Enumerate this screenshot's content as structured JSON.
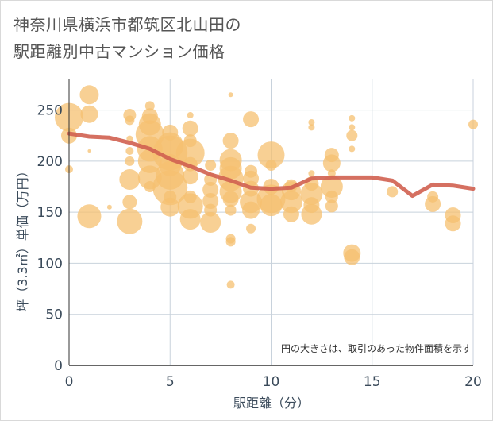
{
  "title_line1": "神奈川県横浜市都筑区北山田の",
  "title_line2": "駅距離別中古マンション価格",
  "chart_data": {
    "type": "scatter",
    "xlabel": "駅距離（分）",
    "ylabel": "坪（3.3㎡）単価（万円）",
    "note": "円の大きさは、取引のあった物件面積を示す",
    "xlim": [
      0,
      20
    ],
    "ylim": [
      0,
      280
    ],
    "xticks": [
      "0",
      "5",
      "10",
      "15",
      "20"
    ],
    "yticks": [
      "0",
      "50",
      "100",
      "150",
      "200",
      "250"
    ],
    "grid": true,
    "colors": {
      "bubble": "#f5c070",
      "line": "#d06050",
      "grid": "#c8d2dc"
    },
    "trend_line": {
      "x": [
        0,
        1,
        2,
        3,
        4,
        5,
        6,
        7,
        8,
        9,
        10,
        11,
        12,
        13,
        14,
        15,
        16,
        17,
        18,
        19,
        20
      ],
      "y": [
        227,
        224,
        223,
        218,
        212,
        202,
        195,
        187,
        181,
        174,
        173,
        174,
        183,
        184,
        184,
        184,
        181,
        166,
        177,
        176,
        173
      ]
    },
    "bubbles": [
      {
        "x": 0,
        "y": 243,
        "r": 18
      },
      {
        "x": 0,
        "y": 225,
        "r": 10
      },
      {
        "x": 0,
        "y": 192,
        "r": 5
      },
      {
        "x": 1,
        "y": 265,
        "r": 12
      },
      {
        "x": 1,
        "y": 246,
        "r": 11
      },
      {
        "x": 1,
        "y": 146,
        "r": 15
      },
      {
        "x": 1,
        "y": 210,
        "r": 2
      },
      {
        "x": 2,
        "y": 155,
        "r": 3
      },
      {
        "x": 3,
        "y": 245,
        "r": 8
      },
      {
        "x": 3,
        "y": 240,
        "r": 6
      },
      {
        "x": 3,
        "y": 222,
        "r": 4
      },
      {
        "x": 3,
        "y": 210,
        "r": 5
      },
      {
        "x": 3,
        "y": 200,
        "r": 6
      },
      {
        "x": 3,
        "y": 182,
        "r": 13
      },
      {
        "x": 3,
        "y": 160,
        "r": 9
      },
      {
        "x": 3,
        "y": 141,
        "r": 16
      },
      {
        "x": 4,
        "y": 254,
        "r": 6
      },
      {
        "x": 4,
        "y": 244,
        "r": 10
      },
      {
        "x": 4,
        "y": 236,
        "r": 14
      },
      {
        "x": 4,
        "y": 226,
        "r": 18
      },
      {
        "x": 4,
        "y": 212,
        "r": 16
      },
      {
        "x": 4,
        "y": 200,
        "r": 15
      },
      {
        "x": 4,
        "y": 184,
        "r": 15
      },
      {
        "x": 4,
        "y": 175,
        "r": 7
      },
      {
        "x": 5,
        "y": 228,
        "r": 10
      },
      {
        "x": 5,
        "y": 215,
        "r": 17
      },
      {
        "x": 5,
        "y": 208,
        "r": 22
      },
      {
        "x": 5,
        "y": 196,
        "r": 14
      },
      {
        "x": 5,
        "y": 186,
        "r": 18
      },
      {
        "x": 5,
        "y": 174,
        "r": 22
      },
      {
        "x": 5,
        "y": 165,
        "r": 8
      },
      {
        "x": 5,
        "y": 155,
        "r": 12
      },
      {
        "x": 6,
        "y": 245,
        "r": 4
      },
      {
        "x": 6,
        "y": 232,
        "r": 10
      },
      {
        "x": 6,
        "y": 220,
        "r": 8
      },
      {
        "x": 6,
        "y": 208,
        "r": 18
      },
      {
        "x": 6,
        "y": 197,
        "r": 9
      },
      {
        "x": 6,
        "y": 185,
        "r": 10
      },
      {
        "x": 6,
        "y": 165,
        "r": 8
      },
      {
        "x": 6,
        "y": 156,
        "r": 16
      },
      {
        "x": 6,
        "y": 143,
        "r": 13
      },
      {
        "x": 7,
        "y": 196,
        "r": 7
      },
      {
        "x": 7,
        "y": 182,
        "r": 8
      },
      {
        "x": 7,
        "y": 172,
        "r": 10
      },
      {
        "x": 7,
        "y": 161,
        "r": 10
      },
      {
        "x": 7,
        "y": 152,
        "r": 8
      },
      {
        "x": 7,
        "y": 140,
        "r": 13
      },
      {
        "x": 8,
        "y": 265,
        "r": 3
      },
      {
        "x": 8,
        "y": 220,
        "r": 10
      },
      {
        "x": 8,
        "y": 201,
        "r": 14
      },
      {
        "x": 8,
        "y": 193,
        "r": 14
      },
      {
        "x": 8,
        "y": 183,
        "r": 16
      },
      {
        "x": 8,
        "y": 170,
        "r": 14
      },
      {
        "x": 8,
        "y": 163,
        "r": 10
      },
      {
        "x": 8,
        "y": 152,
        "r": 7
      },
      {
        "x": 8,
        "y": 124,
        "r": 6
      },
      {
        "x": 8,
        "y": 121,
        "r": 6
      },
      {
        "x": 8,
        "y": 79,
        "r": 5
      },
      {
        "x": 9,
        "y": 241,
        "r": 10
      },
      {
        "x": 9,
        "y": 190,
        "r": 8
      },
      {
        "x": 9,
        "y": 183,
        "r": 10
      },
      {
        "x": 9,
        "y": 173,
        "r": 10
      },
      {
        "x": 9,
        "y": 160,
        "r": 14
      },
      {
        "x": 9,
        "y": 152,
        "r": 11
      },
      {
        "x": 9,
        "y": 134,
        "r": 6
      },
      {
        "x": 10,
        "y": 206,
        "r": 17
      },
      {
        "x": 10,
        "y": 196,
        "r": 7
      },
      {
        "x": 10,
        "y": 175,
        "r": 10
      },
      {
        "x": 10,
        "y": 163,
        "r": 18
      },
      {
        "x": 10,
        "y": 157,
        "r": 14
      },
      {
        "x": 11,
        "y": 176,
        "r": 8
      },
      {
        "x": 11,
        "y": 171,
        "r": 12
      },
      {
        "x": 11,
        "y": 160,
        "r": 14
      },
      {
        "x": 11,
        "y": 148,
        "r": 10
      },
      {
        "x": 12,
        "y": 238,
        "r": 4
      },
      {
        "x": 12,
        "y": 233,
        "r": 4
      },
      {
        "x": 12,
        "y": 188,
        "r": 4
      },
      {
        "x": 12,
        "y": 178,
        "r": 9
      },
      {
        "x": 12,
        "y": 168,
        "r": 14
      },
      {
        "x": 12,
        "y": 157,
        "r": 10
      },
      {
        "x": 12,
        "y": 148,
        "r": 13
      },
      {
        "x": 13,
        "y": 206,
        "r": 9
      },
      {
        "x": 13,
        "y": 198,
        "r": 11
      },
      {
        "x": 13,
        "y": 188,
        "r": 5
      },
      {
        "x": 13,
        "y": 175,
        "r": 14
      },
      {
        "x": 13,
        "y": 165,
        "r": 8
      },
      {
        "x": 13,
        "y": 156,
        "r": 8
      },
      {
        "x": 14,
        "y": 242,
        "r": 4
      },
      {
        "x": 14,
        "y": 233,
        "r": 4
      },
      {
        "x": 14,
        "y": 225,
        "r": 7
      },
      {
        "x": 14,
        "y": 212,
        "r": 4
      },
      {
        "x": 14,
        "y": 110,
        "r": 11
      },
      {
        "x": 14,
        "y": 106,
        "r": 10
      },
      {
        "x": 16,
        "y": 170,
        "r": 7
      },
      {
        "x": 18,
        "y": 165,
        "r": 7
      },
      {
        "x": 18,
        "y": 158,
        "r": 10
      },
      {
        "x": 19,
        "y": 147,
        "r": 10
      },
      {
        "x": 19,
        "y": 139,
        "r": 10
      },
      {
        "x": 20,
        "y": 236,
        "r": 6
      }
    ]
  }
}
